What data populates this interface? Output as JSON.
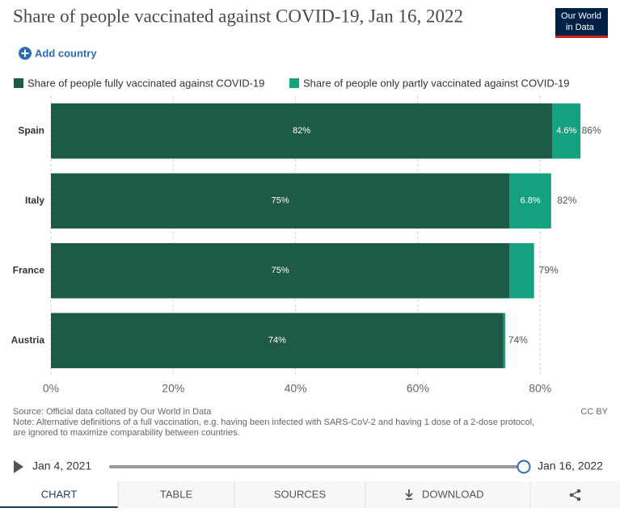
{
  "chart_data": {
    "type": "stacked-barh",
    "title": "Share of people vaccinated against COVID-19, Jan 16, 2022",
    "categories": [
      "Spain",
      "Italy",
      "France",
      "Austria"
    ],
    "series": [
      {
        "name": "Share of people fully vaccinated against COVID-19",
        "color": "#1d5a48",
        "values": [
          82,
          75,
          75,
          74
        ],
        "value_labels": [
          "82%",
          "75%",
          "75%",
          "74%"
        ]
      },
      {
        "name": "Share of people only partly vaccinated against COVID-19",
        "color": "#14a17f",
        "values": [
          4.6,
          6.8,
          4,
          0.3
        ],
        "value_labels": [
          "4.6%",
          "6.8%",
          null,
          null
        ]
      }
    ],
    "totals": [
      86,
      82,
      79,
      74
    ],
    "total_labels": [
      "86%",
      "82%",
      "79%",
      "74%"
    ],
    "xlim": [
      0,
      92
    ],
    "xticks": [
      {
        "value": 0,
        "label": "0%"
      },
      {
        "value": 20,
        "label": "20%"
      },
      {
        "value": 40,
        "label": "40%"
      },
      {
        "value": 60,
        "label": "60%"
      },
      {
        "value": 80,
        "label": "80%"
      }
    ],
    "grid": true,
    "source": "Source: Official data collated by Our World in Data",
    "note": [
      "Note: Alternative definitions of a full vaccination, e.g. having been infected with SARS-CoV-2 and having 1 dose of a 2-dose protocol,",
      "are ignored to maximize comparability between countries."
    ],
    "license": "CC BY"
  },
  "ui": {
    "logo": [
      "Our World",
      "in Data"
    ],
    "add_country": "Add country",
    "timeline": {
      "start": "Jan 4, 2021",
      "end": "Jan 16, 2022"
    },
    "tabs": [
      "CHART",
      "TABLE",
      "SOURCES",
      "DOWNLOAD"
    ]
  }
}
